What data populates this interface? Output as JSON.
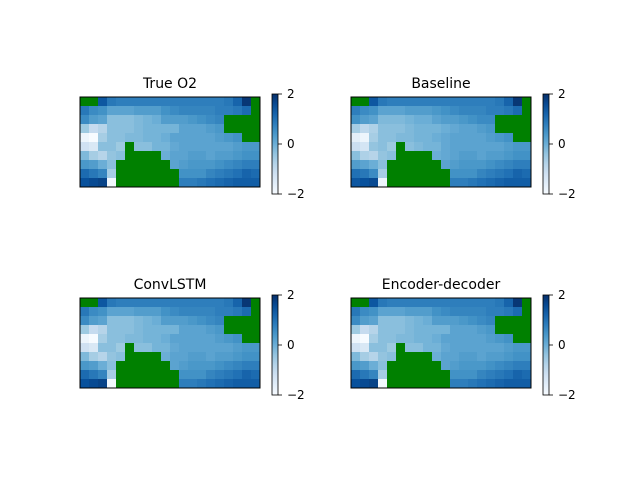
{
  "chart_data": [
    {
      "type": "heatmap",
      "title": "True O2",
      "grid_cols": 20,
      "grid_rows": 10,
      "colorbar": {
        "ticks": [
          2,
          0,
          -2
        ],
        "tick_labels": [
          "2",
          "0",
          "−2"
        ],
        "range": [
          -2,
          2
        ],
        "colormap": "Blues"
      },
      "mask_color": "#008000",
      "values": [
        [
          null,
          null,
          1.4,
          0.9,
          0.8,
          0.8,
          0.8,
          0.8,
          0.8,
          0.8,
          0.8,
          0.8,
          0.8,
          0.8,
          0.8,
          0.8,
          0.9,
          1.2,
          1.9,
          null
        ],
        [
          0.9,
          0.6,
          0.5,
          0.2,
          0.2,
          0.2,
          0.3,
          0.3,
          0.3,
          0.5,
          0.6,
          0.7,
          0.7,
          0.7,
          0.7,
          0.8,
          0.8,
          0.9,
          1.1,
          null
        ],
        [
          0.6,
          0.3,
          0.2,
          -0.3,
          -0.3,
          -0.3,
          -0.2,
          -0.1,
          0.0,
          0.3,
          0.3,
          0.3,
          0.4,
          0.5,
          0.6,
          0.7,
          null,
          null,
          null,
          null
        ],
        [
          -0.5,
          -1.0,
          -0.8,
          -0.3,
          -0.3,
          -0.3,
          -0.2,
          -0.1,
          -0.1,
          -0.1,
          -0.1,
          0.2,
          0.2,
          0.2,
          0.3,
          0.4,
          null,
          null,
          null,
          null
        ],
        [
          -1.8,
          -2.0,
          -0.6,
          -0.3,
          -0.3,
          -0.2,
          -0.2,
          -0.1,
          -0.1,
          0.0,
          0.2,
          0.2,
          0.2,
          0.2,
          0.2,
          0.3,
          0.4,
          0.5,
          null,
          null
        ],
        [
          -1.2,
          -1.4,
          -0.3,
          -0.3,
          -0.5,
          null,
          -0.3,
          -0.3,
          -0.1,
          -0.1,
          0.1,
          0.2,
          0.2,
          0.2,
          0.2,
          0.2,
          0.2,
          0.3,
          0.4,
          0.4
        ],
        [
          -0.2,
          -0.6,
          -0.8,
          -0.4,
          -0.3,
          null,
          null,
          null,
          null,
          0.0,
          0.2,
          0.2,
          0.3,
          0.3,
          0.2,
          0.3,
          0.3,
          0.4,
          0.5,
          0.5
        ],
        [
          0.4,
          0.3,
          0.0,
          -0.3,
          null,
          null,
          null,
          null,
          null,
          null,
          0.2,
          0.3,
          0.4,
          0.4,
          0.4,
          0.5,
          0.6,
          0.7,
          0.8,
          0.8
        ],
        [
          1.1,
          0.9,
          0.7,
          -0.6,
          null,
          null,
          null,
          null,
          null,
          null,
          null,
          0.5,
          0.5,
          0.5,
          0.7,
          0.8,
          0.9,
          1.0,
          1.2,
          1.1
        ],
        [
          1.5,
          1.6,
          1.7,
          -1.9,
          null,
          null,
          null,
          null,
          null,
          null,
          null,
          0.8,
          0.8,
          0.9,
          1.0,
          1.1,
          1.2,
          1.3,
          1.3,
          1.3
        ]
      ]
    },
    {
      "type": "heatmap",
      "title": "Baseline",
      "grid_cols": 20,
      "grid_rows": 10,
      "colorbar": {
        "ticks": [
          2,
          0,
          -2
        ],
        "tick_labels": [
          "2",
          "0",
          "−2"
        ],
        "range": [
          -2,
          2
        ],
        "colormap": "Blues"
      },
      "mask_color": "#008000",
      "values": [
        [
          null,
          null,
          1.4,
          0.9,
          0.8,
          0.8,
          0.8,
          0.8,
          0.8,
          0.8,
          0.8,
          0.8,
          0.8,
          0.8,
          0.8,
          0.8,
          0.9,
          1.2,
          1.9,
          null
        ],
        [
          0.8,
          0.6,
          0.5,
          0.2,
          0.2,
          0.2,
          0.3,
          0.3,
          0.3,
          0.4,
          0.5,
          0.6,
          0.7,
          0.7,
          0.7,
          0.8,
          0.8,
          0.9,
          1.1,
          null
        ],
        [
          0.5,
          0.3,
          0.2,
          -0.2,
          -0.2,
          -0.2,
          -0.1,
          0.0,
          0.0,
          0.2,
          0.3,
          0.3,
          0.4,
          0.5,
          0.6,
          0.6,
          null,
          null,
          null,
          null
        ],
        [
          -0.6,
          -0.9,
          -0.7,
          -0.3,
          -0.3,
          -0.3,
          -0.2,
          -0.1,
          -0.1,
          -0.1,
          0.0,
          0.1,
          0.2,
          0.2,
          0.3,
          0.4,
          null,
          null,
          null,
          null
        ],
        [
          -1.6,
          -1.8,
          -0.6,
          -0.3,
          -0.3,
          -0.2,
          -0.2,
          -0.1,
          -0.1,
          0.0,
          0.1,
          0.2,
          0.2,
          0.2,
          0.2,
          0.3,
          0.4,
          0.5,
          null,
          null
        ],
        [
          -1.1,
          -1.3,
          -0.4,
          -0.3,
          -0.5,
          null,
          -0.3,
          -0.2,
          -0.1,
          -0.1,
          0.1,
          0.2,
          0.2,
          0.2,
          0.2,
          0.2,
          0.2,
          0.3,
          0.4,
          0.4
        ],
        [
          -0.3,
          -0.7,
          -0.8,
          -0.4,
          -0.3,
          null,
          null,
          null,
          null,
          0.0,
          0.1,
          0.2,
          0.3,
          0.3,
          0.2,
          0.3,
          0.3,
          0.4,
          0.5,
          0.5
        ],
        [
          0.3,
          0.2,
          0.0,
          -0.3,
          null,
          null,
          null,
          null,
          null,
          null,
          0.2,
          0.3,
          0.4,
          0.4,
          0.4,
          0.5,
          0.6,
          0.7,
          0.8,
          0.8
        ],
        [
          1.0,
          0.9,
          0.6,
          -0.6,
          null,
          null,
          null,
          null,
          null,
          null,
          null,
          0.5,
          0.5,
          0.5,
          0.7,
          0.8,
          0.9,
          1.0,
          1.2,
          1.1
        ],
        [
          1.4,
          1.5,
          1.6,
          -1.8,
          null,
          null,
          null,
          null,
          null,
          null,
          null,
          0.8,
          0.8,
          0.9,
          1.0,
          1.1,
          1.2,
          1.3,
          1.3,
          1.3
        ]
      ]
    },
    {
      "type": "heatmap",
      "title": "ConvLSTM",
      "grid_cols": 20,
      "grid_rows": 10,
      "colorbar": {
        "ticks": [
          2,
          0,
          -2
        ],
        "tick_labels": [
          "2",
          "0",
          "−2"
        ],
        "range": [
          -2,
          2
        ],
        "colormap": "Blues"
      },
      "mask_color": "#008000",
      "values": [
        [
          null,
          null,
          1.4,
          0.9,
          0.8,
          0.8,
          0.8,
          0.8,
          0.8,
          0.8,
          0.8,
          0.8,
          0.8,
          0.8,
          0.8,
          0.8,
          0.9,
          1.2,
          1.9,
          null
        ],
        [
          0.9,
          0.6,
          0.5,
          0.2,
          0.2,
          0.2,
          0.3,
          0.3,
          0.3,
          0.5,
          0.6,
          0.7,
          0.7,
          0.7,
          0.7,
          0.8,
          0.8,
          0.9,
          1.1,
          null
        ],
        [
          0.6,
          0.3,
          0.2,
          -0.3,
          -0.3,
          -0.3,
          -0.2,
          -0.1,
          0.0,
          0.3,
          0.3,
          0.3,
          0.4,
          0.5,
          0.6,
          0.7,
          null,
          null,
          null,
          null
        ],
        [
          -0.5,
          -1.0,
          -0.8,
          -0.3,
          -0.3,
          -0.3,
          -0.2,
          -0.1,
          -0.1,
          -0.1,
          -0.1,
          0.2,
          0.2,
          0.2,
          0.3,
          0.4,
          null,
          null,
          null,
          null
        ],
        [
          -1.8,
          -2.0,
          -0.6,
          -0.3,
          -0.3,
          -0.2,
          -0.2,
          -0.1,
          -0.1,
          0.0,
          0.2,
          0.2,
          0.2,
          0.2,
          0.2,
          0.3,
          0.4,
          0.5,
          null,
          null
        ],
        [
          -1.2,
          -1.4,
          -0.3,
          -0.3,
          -0.5,
          null,
          -0.3,
          -0.3,
          -0.1,
          -0.1,
          0.1,
          0.2,
          0.2,
          0.2,
          0.2,
          0.2,
          0.2,
          0.3,
          0.4,
          0.4
        ],
        [
          -0.2,
          -0.6,
          -0.8,
          -0.4,
          -0.3,
          null,
          null,
          null,
          null,
          0.0,
          0.2,
          0.2,
          0.3,
          0.3,
          0.2,
          0.3,
          0.3,
          0.4,
          0.5,
          0.5
        ],
        [
          0.4,
          0.3,
          0.0,
          -0.3,
          null,
          null,
          null,
          null,
          null,
          null,
          0.2,
          0.3,
          0.4,
          0.4,
          0.4,
          0.5,
          0.6,
          0.7,
          0.8,
          0.8
        ],
        [
          1.1,
          0.9,
          0.7,
          -0.6,
          null,
          null,
          null,
          null,
          null,
          null,
          null,
          0.5,
          0.5,
          0.5,
          0.7,
          0.8,
          0.9,
          1.0,
          1.2,
          1.1
        ],
        [
          1.5,
          1.6,
          1.7,
          -1.9,
          null,
          null,
          null,
          null,
          null,
          null,
          null,
          0.8,
          0.8,
          0.9,
          1.0,
          1.1,
          1.2,
          1.3,
          1.3,
          1.3
        ]
      ]
    },
    {
      "type": "heatmap",
      "title": "Encoder-decoder",
      "grid_cols": 20,
      "grid_rows": 10,
      "colorbar": {
        "ticks": [
          2,
          0,
          -2
        ],
        "tick_labels": [
          "2",
          "0",
          "−2"
        ],
        "range": [
          -2,
          2
        ],
        "colormap": "Blues"
      },
      "mask_color": "#008000",
      "values": [
        [
          null,
          null,
          1.4,
          0.9,
          0.8,
          0.8,
          0.8,
          0.8,
          0.8,
          0.8,
          0.8,
          0.8,
          0.8,
          0.8,
          0.8,
          0.8,
          0.9,
          1.2,
          1.9,
          null
        ],
        [
          0.9,
          0.6,
          0.5,
          0.2,
          0.2,
          0.2,
          0.3,
          0.3,
          0.3,
          0.5,
          0.6,
          0.7,
          0.7,
          0.7,
          0.7,
          0.8,
          0.8,
          0.9,
          1.1,
          null
        ],
        [
          0.6,
          0.3,
          0.2,
          -0.3,
          -0.3,
          -0.3,
          -0.2,
          -0.1,
          0.0,
          0.3,
          0.3,
          0.3,
          0.4,
          0.5,
          0.6,
          0.7,
          null,
          null,
          null,
          null
        ],
        [
          -0.5,
          -1.0,
          -0.8,
          -0.3,
          -0.3,
          -0.3,
          -0.2,
          -0.1,
          -0.1,
          -0.1,
          -0.1,
          0.2,
          0.2,
          0.2,
          0.3,
          0.4,
          null,
          null,
          null,
          null
        ],
        [
          -1.8,
          -2.0,
          -0.6,
          -0.3,
          -0.3,
          -0.2,
          -0.2,
          -0.1,
          -0.1,
          0.0,
          0.2,
          0.2,
          0.2,
          0.2,
          0.2,
          0.3,
          0.4,
          0.5,
          null,
          null
        ],
        [
          -1.2,
          -1.4,
          -0.3,
          -0.3,
          -0.5,
          null,
          -0.3,
          -0.3,
          -0.1,
          -0.1,
          0.1,
          0.2,
          0.2,
          0.2,
          0.2,
          0.2,
          0.2,
          0.3,
          0.4,
          0.4
        ],
        [
          -0.2,
          -0.6,
          -0.8,
          -0.4,
          -0.3,
          null,
          null,
          null,
          null,
          0.0,
          0.2,
          0.2,
          0.3,
          0.3,
          0.2,
          0.3,
          0.3,
          0.4,
          0.5,
          0.5
        ],
        [
          0.4,
          0.3,
          0.0,
          -0.3,
          null,
          null,
          null,
          null,
          null,
          null,
          0.2,
          0.3,
          0.4,
          0.4,
          0.4,
          0.5,
          0.6,
          0.7,
          0.8,
          0.8
        ],
        [
          1.1,
          0.9,
          0.7,
          -0.6,
          null,
          null,
          null,
          null,
          null,
          null,
          null,
          0.5,
          0.5,
          0.5,
          0.7,
          0.8,
          0.9,
          1.0,
          1.2,
          1.1
        ],
        [
          1.5,
          1.6,
          1.7,
          -1.9,
          null,
          null,
          null,
          null,
          null,
          null,
          null,
          0.8,
          0.8,
          0.9,
          1.0,
          1.1,
          1.2,
          1.3,
          1.3,
          1.3
        ]
      ]
    }
  ]
}
